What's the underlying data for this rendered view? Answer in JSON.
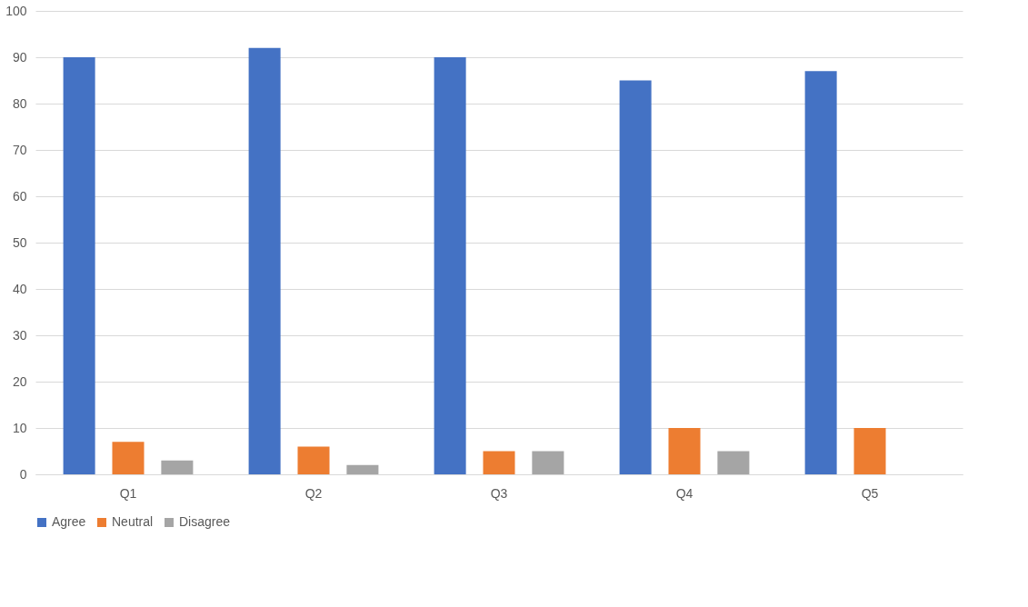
{
  "chart_data": {
    "type": "bar",
    "categories": [
      "Q1",
      "Q2",
      "Q3",
      "Q4",
      "Q5"
    ],
    "series": [
      {
        "name": "Agree",
        "color": "#4472c4",
        "values": [
          90,
          92,
          90,
          85,
          87
        ]
      },
      {
        "name": "Neutral",
        "color": "#ed7d31",
        "values": [
          7,
          6,
          5,
          10,
          10
        ]
      },
      {
        "name": "Disagree",
        "color": "#a5a5a5",
        "values": [
          3,
          2,
          5,
          5,
          0
        ]
      }
    ],
    "ylim": [
      0,
      100
    ],
    "yticks": [
      0,
      10,
      20,
      30,
      40,
      50,
      60,
      70,
      80,
      90,
      100
    ],
    "grid": "y",
    "legend": "bottom"
  }
}
